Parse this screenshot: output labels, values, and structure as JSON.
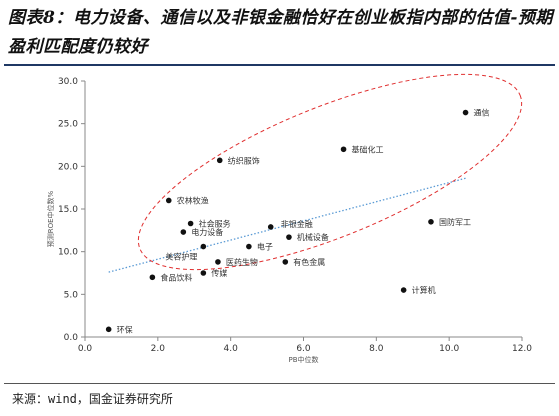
{
  "title": "图表8：电力设备、通信以及非银金融恰好在创业板指内部的估值-预期盈利匹配度仍较好",
  "source": "来源：wind，国金证券研究所",
  "chart_data": {
    "type": "scatter",
    "xlabel": "PB中位数",
    "ylabel": "预测ROE中位数%",
    "xlim": [
      0,
      12
    ],
    "ylim": [
      0,
      30
    ],
    "xticks": [
      "0.0",
      "2.0",
      "4.0",
      "6.0",
      "8.0",
      "10.0",
      "12.0"
    ],
    "yticks": [
      "0.0",
      "5.0",
      "10.0",
      "15.0",
      "20.0",
      "25.0",
      "30.0"
    ],
    "points": [
      {
        "label": "通信",
        "x": 10.45,
        "y": 26.3
      },
      {
        "label": "基础化工",
        "x": 7.1,
        "y": 22.0
      },
      {
        "label": "纺织服饰",
        "x": 3.7,
        "y": 20.7
      },
      {
        "label": "农林牧渔",
        "x": 2.3,
        "y": 16.0
      },
      {
        "label": "国防军工",
        "x": 9.5,
        "y": 13.5
      },
      {
        "label": "社会服务",
        "x": 2.9,
        "y": 13.3
      },
      {
        "label": "电力设备",
        "x": 2.7,
        "y": 12.3
      },
      {
        "label": "非银金融",
        "x": 5.1,
        "y": 12.9
      },
      {
        "label": "机械设备",
        "x": 5.6,
        "y": 11.7
      },
      {
        "label": "电子",
        "x": 4.5,
        "y": 10.6
      },
      {
        "label": "美容护理",
        "x": 3.25,
        "y": 10.6
      },
      {
        "label": "医药生物",
        "x": 3.65,
        "y": 8.8
      },
      {
        "label": "有色金属",
        "x": 5.5,
        "y": 8.8
      },
      {
        "label": "传媒",
        "x": 3.25,
        "y": 7.5
      },
      {
        "label": "食品饮料",
        "x": 1.85,
        "y": 7.0
      },
      {
        "label": "计算机",
        "x": 8.75,
        "y": 5.5
      },
      {
        "label": "环保",
        "x": 0.65,
        "y": 0.9
      }
    ],
    "trendline": {
      "x": [
        0.65,
        10.45
      ],
      "y": [
        7.6,
        18.6
      ]
    },
    "colors": {
      "point": "#111111",
      "trend": "#5b9bd5",
      "ellipse": "#e03030"
    }
  }
}
